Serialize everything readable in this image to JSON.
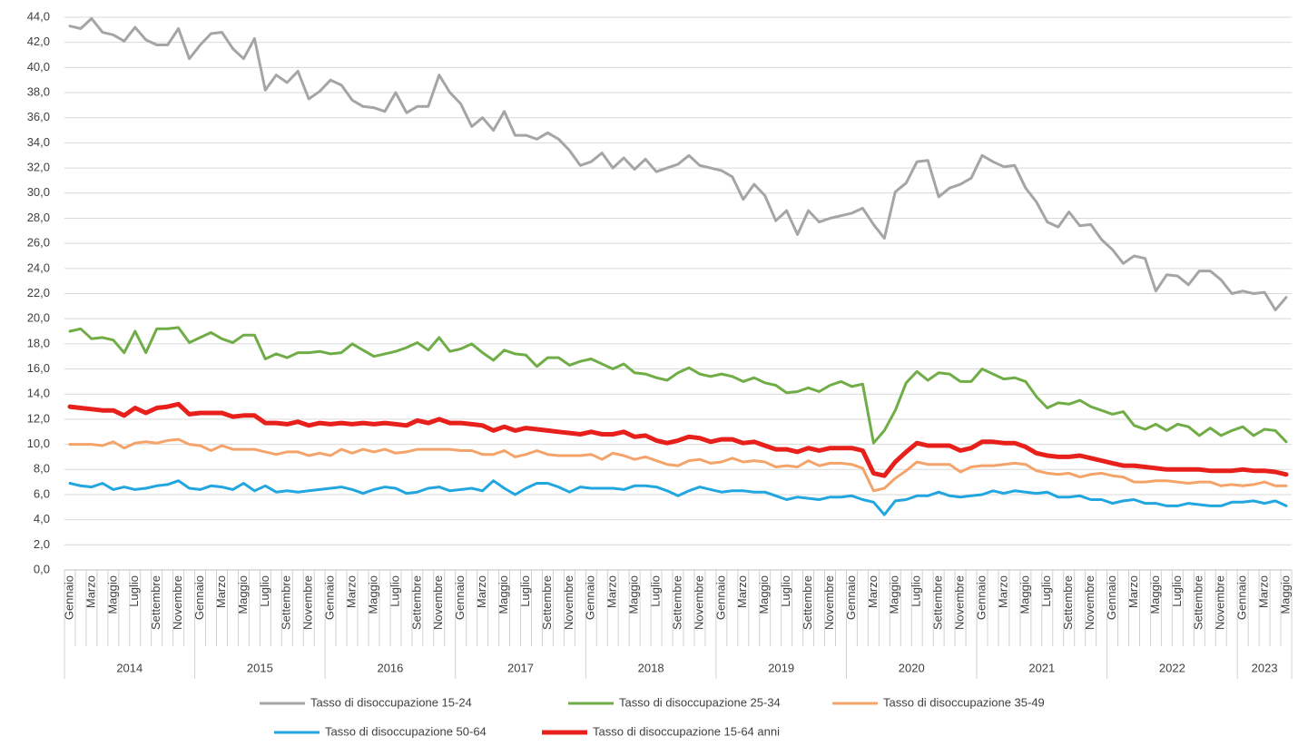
{
  "chart_data": {
    "type": "line",
    "categories": [
      "Gennaio",
      null,
      "Marzo",
      null,
      "Maggio",
      null,
      "Luglio",
      null,
      "Settembre",
      null,
      "Novembre",
      null,
      "Gennaio",
      null,
      "Marzo",
      null,
      "Maggio",
      null,
      "Luglio",
      null,
      "Settembre",
      null,
      "Novembre",
      null,
      "Gennaio",
      null,
      "Marzo",
      null,
      "Maggio",
      null,
      "Luglio",
      null,
      "Settembre",
      null,
      "Novembre",
      null,
      "Gennaio",
      null,
      "Marzo",
      null,
      "Maggio",
      null,
      "Luglio",
      null,
      "Settembre",
      null,
      "Novembre",
      null,
      "Gennaio",
      null,
      "Marzo",
      null,
      "Maggio",
      null,
      "Luglio",
      null,
      "Settembre",
      null,
      "Novembre",
      null,
      "Gennaio",
      null,
      "Marzo",
      null,
      "Maggio",
      null,
      "Luglio",
      null,
      "Settembre",
      null,
      "Novembre",
      null,
      "Gennaio",
      null,
      "Marzo",
      null,
      "Maggio",
      null,
      "Luglio",
      null,
      "Settembre",
      null,
      "Novembre",
      null,
      "Gennaio",
      null,
      "Marzo",
      null,
      "Maggio",
      null,
      "Luglio",
      null,
      "Settembre",
      null,
      "Novembre",
      null,
      "Gennaio",
      null,
      "Marzo",
      null,
      "Maggio",
      null,
      "Luglio",
      null,
      "Settembre",
      null,
      "Novembre",
      null,
      "Gennaio",
      null,
      "Marzo",
      null,
      "Maggio"
    ],
    "x_groups": [
      "2014",
      "2015",
      "2016",
      "2017",
      "2018",
      "2019",
      "2020",
      "2021",
      "2022",
      "2023"
    ],
    "ylim": [
      0,
      44
    ],
    "yticks": [
      {
        "value": 0,
        "label": "0,0"
      },
      {
        "value": 2,
        "label": "2,0"
      },
      {
        "value": 4,
        "label": "4,0"
      },
      {
        "value": 6,
        "label": "6,0"
      },
      {
        "value": 8,
        "label": "8,0"
      },
      {
        "value": 10,
        "label": "10,0"
      },
      {
        "value": 12,
        "label": "12,0"
      },
      {
        "value": 14,
        "label": "14,0"
      },
      {
        "value": 16,
        "label": "16,0"
      },
      {
        "value": 18,
        "label": "18,0"
      },
      {
        "value": 20,
        "label": "20,0"
      },
      {
        "value": 22,
        "label": "22,0"
      },
      {
        "value": 24,
        "label": "24,0"
      },
      {
        "value": 26,
        "label": "26,0"
      },
      {
        "value": 28,
        "label": "28,0"
      },
      {
        "value": 30,
        "label": "30,0"
      },
      {
        "value": 32,
        "label": "32,0"
      },
      {
        "value": 34,
        "label": "34,0"
      },
      {
        "value": 36,
        "label": "36,0"
      },
      {
        "value": 38,
        "label": "38,0"
      },
      {
        "value": 40,
        "label": "40,0"
      },
      {
        "value": 42,
        "label": "42,0"
      },
      {
        "value": 44,
        "label": "44,0"
      }
    ],
    "grid": true,
    "legend": "bottom",
    "series": [
      {
        "name": "Tasso di disoccupazione 15-24",
        "color": "#a5a5a5",
        "width": 3,
        "values": [
          43.3,
          43.1,
          43.9,
          42.8,
          42.6,
          42.1,
          43.2,
          42.2,
          41.8,
          41.8,
          43.1,
          40.7,
          41.8,
          42.7,
          42.8,
          41.5,
          40.7,
          42.3,
          38.2,
          39.4,
          38.8,
          39.7,
          37.5,
          38.1,
          39.0,
          38.6,
          37.4,
          36.9,
          36.8,
          36.5,
          38.0,
          36.4,
          36.9,
          36.9,
          39.4,
          38.0,
          37.1,
          35.3,
          36.0,
          35.0,
          36.5,
          34.6,
          34.6,
          34.3,
          34.8,
          34.3,
          33.4,
          32.2,
          32.5,
          33.2,
          32.0,
          32.8,
          31.9,
          32.7,
          31.7,
          32.0,
          32.3,
          33.0,
          32.2,
          32.0,
          31.8,
          31.3,
          29.5,
          30.7,
          29.8,
          27.8,
          28.6,
          26.7,
          28.6,
          27.7,
          28.0,
          28.2,
          28.4,
          28.8,
          27.5,
          26.4,
          30.1,
          30.8,
          32.5,
          32.6,
          29.7,
          30.4,
          30.7,
          31.2,
          33.0,
          32.5,
          32.1,
          32.2,
          30.4,
          29.3,
          27.7,
          27.3,
          28.5,
          27.4,
          27.5,
          26.3,
          25.5,
          24.4,
          25.0,
          24.8,
          22.2,
          23.5,
          23.4,
          22.7,
          23.8,
          23.8,
          23.1,
          22.0,
          22.2,
          22.0,
          22.1,
          20.7,
          21.7
        ]
      },
      {
        "name": "Tasso di disoccupazione 25-34",
        "color": "#70ad47",
        "width": 3,
        "values": [
          19.0,
          19.2,
          18.4,
          18.5,
          18.3,
          17.3,
          19.0,
          17.3,
          19.2,
          19.2,
          19.3,
          18.1,
          18.5,
          18.9,
          18.4,
          18.1,
          18.7,
          18.7,
          16.8,
          17.2,
          16.9,
          17.3,
          17.3,
          17.4,
          17.2,
          17.3,
          18.0,
          17.5,
          17.0,
          17.2,
          17.4,
          17.7,
          18.1,
          17.5,
          18.5,
          17.4,
          17.6,
          18.0,
          17.3,
          16.7,
          17.5,
          17.2,
          17.1,
          16.2,
          16.9,
          16.9,
          16.3,
          16.6,
          16.8,
          16.4,
          16.0,
          16.4,
          15.7,
          15.6,
          15.3,
          15.1,
          15.7,
          16.1,
          15.6,
          15.4,
          15.6,
          15.4,
          15.0,
          15.3,
          14.9,
          14.7,
          14.1,
          14.2,
          14.5,
          14.2,
          14.7,
          15.0,
          14.6,
          14.8,
          10.1,
          11.1,
          12.7,
          14.9,
          15.8,
          15.1,
          15.7,
          15.6,
          15.0,
          15.0,
          16.0,
          15.6,
          15.2,
          15.3,
          15.0,
          13.8,
          12.9,
          13.3,
          13.2,
          13.5,
          13.0,
          12.7,
          12.4,
          12.6,
          11.5,
          11.2,
          11.6,
          11.1,
          11.6,
          11.4,
          10.7,
          11.3,
          10.7,
          11.1,
          11.4,
          10.7,
          11.2,
          11.1,
          10.2
        ]
      },
      {
        "name": "Tasso di disoccupazione 35-49",
        "color": "#f4a46a",
        "width": 3,
        "values": [
          10.0,
          10.0,
          10.0,
          9.9,
          10.2,
          9.7,
          10.1,
          10.2,
          10.1,
          10.3,
          10.4,
          10.0,
          9.9,
          9.5,
          9.9,
          9.6,
          9.6,
          9.6,
          9.4,
          9.2,
          9.4,
          9.4,
          9.1,
          9.3,
          9.1,
          9.6,
          9.3,
          9.6,
          9.4,
          9.6,
          9.3,
          9.4,
          9.6,
          9.6,
          9.6,
          9.6,
          9.5,
          9.5,
          9.2,
          9.2,
          9.5,
          9.0,
          9.2,
          9.5,
          9.2,
          9.1,
          9.1,
          9.1,
          9.2,
          8.8,
          9.3,
          9.1,
          8.8,
          9.0,
          8.7,
          8.4,
          8.3,
          8.7,
          8.8,
          8.5,
          8.6,
          8.9,
          8.6,
          8.7,
          8.6,
          8.2,
          8.3,
          8.2,
          8.7,
          8.3,
          8.5,
          8.5,
          8.4,
          8.1,
          6.3,
          6.5,
          7.3,
          7.9,
          8.6,
          8.4,
          8.4,
          8.4,
          7.8,
          8.2,
          8.3,
          8.3,
          8.4,
          8.5,
          8.4,
          7.9,
          7.7,
          7.6,
          7.7,
          7.4,
          7.6,
          7.7,
          7.5,
          7.4,
          7.0,
          7.0,
          7.1,
          7.1,
          7.0,
          6.9,
          7.0,
          7.0,
          6.7,
          6.8,
          6.7,
          6.8,
          7.0,
          6.7,
          6.7
        ]
      },
      {
        "name": "Tasso di disoccupazione 50-64",
        "color": "#22a6df",
        "width": 3,
        "values": [
          6.9,
          6.7,
          6.6,
          6.9,
          6.4,
          6.6,
          6.4,
          6.5,
          6.7,
          6.8,
          7.1,
          6.5,
          6.4,
          6.7,
          6.6,
          6.4,
          6.9,
          6.3,
          6.7,
          6.2,
          6.3,
          6.2,
          6.3,
          6.4,
          6.5,
          6.6,
          6.4,
          6.1,
          6.4,
          6.6,
          6.5,
          6.1,
          6.2,
          6.5,
          6.6,
          6.3,
          6.4,
          6.5,
          6.3,
          7.1,
          6.5,
          6.0,
          6.5,
          6.9,
          6.9,
          6.6,
          6.2,
          6.6,
          6.5,
          6.5,
          6.5,
          6.4,
          6.7,
          6.7,
          6.6,
          6.3,
          5.9,
          6.3,
          6.6,
          6.4,
          6.2,
          6.3,
          6.3,
          6.2,
          6.2,
          5.9,
          5.6,
          5.8,
          5.7,
          5.6,
          5.8,
          5.8,
          5.9,
          5.6,
          5.4,
          4.4,
          5.5,
          5.6,
          5.9,
          5.9,
          6.2,
          5.9,
          5.8,
          5.9,
          6.0,
          6.3,
          6.1,
          6.3,
          6.2,
          6.1,
          6.2,
          5.8,
          5.8,
          5.9,
          5.6,
          5.6,
          5.3,
          5.5,
          5.6,
          5.3,
          5.3,
          5.1,
          5.1,
          5.3,
          5.2,
          5.1,
          5.1,
          5.4,
          5.4,
          5.5,
          5.3,
          5.5,
          5.1
        ]
      },
      {
        "name": "Tasso di disoccupazione 15-64 anni",
        "color": "#e8201c",
        "width": 5,
        "values": [
          13.0,
          12.9,
          12.8,
          12.7,
          12.7,
          12.3,
          12.9,
          12.5,
          12.9,
          13.0,
          13.2,
          12.4,
          12.5,
          12.5,
          12.5,
          12.2,
          12.3,
          12.3,
          11.7,
          11.7,
          11.6,
          11.8,
          11.5,
          11.7,
          11.6,
          11.7,
          11.6,
          11.7,
          11.6,
          11.7,
          11.6,
          11.5,
          11.9,
          11.7,
          12.0,
          11.7,
          11.7,
          11.6,
          11.5,
          11.1,
          11.4,
          11.1,
          11.3,
          11.2,
          11.1,
          11.0,
          10.9,
          10.8,
          11.0,
          10.8,
          10.8,
          11.0,
          10.6,
          10.7,
          10.3,
          10.1,
          10.3,
          10.6,
          10.5,
          10.2,
          10.4,
          10.4,
          10.1,
          10.2,
          9.9,
          9.6,
          9.6,
          9.4,
          9.7,
          9.5,
          9.7,
          9.7,
          9.7,
          9.5,
          7.7,
          7.5,
          8.6,
          9.4,
          10.1,
          9.9,
          9.9,
          9.9,
          9.5,
          9.7,
          10.2,
          10.2,
          10.1,
          10.1,
          9.8,
          9.3,
          9.1,
          9.0,
          9.0,
          9.1,
          8.9,
          8.7,
          8.5,
          8.3,
          8.3,
          8.2,
          8.1,
          8.0,
          8.0,
          8.0,
          8.0,
          7.9,
          7.9,
          7.9,
          8.0,
          7.9,
          7.9,
          7.8,
          7.6
        ]
      }
    ]
  }
}
